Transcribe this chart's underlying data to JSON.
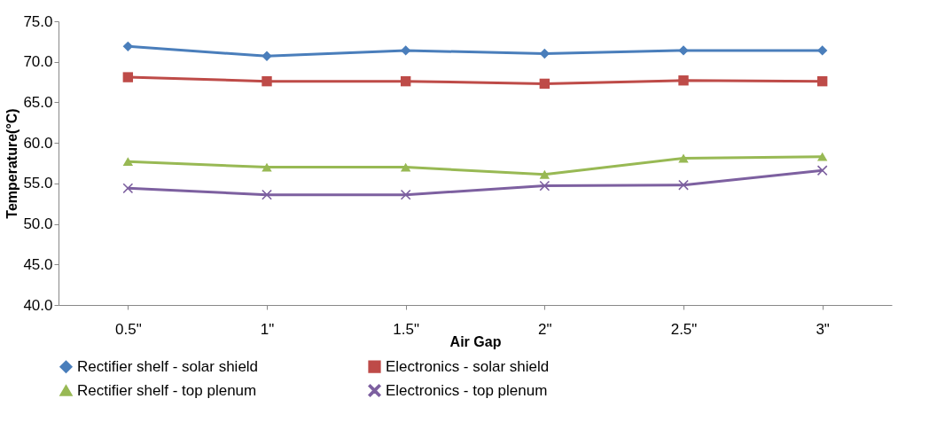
{
  "chart_data": {
    "type": "line",
    "xlabel": "Air Gap",
    "ylabel": "Temperature(°C)",
    "categories": [
      "0.5\"",
      "1\"",
      "1.5\"",
      "2\"",
      "2.5\"",
      "3\""
    ],
    "series": [
      {
        "name": "Rectifier shelf - solar shield",
        "color": "#4a7ebb",
        "marker": "diamond",
        "values": [
          71.9,
          70.7,
          71.4,
          71.0,
          71.4,
          71.4
        ]
      },
      {
        "name": "Electronics - solar shield",
        "color": "#be4b48",
        "marker": "square",
        "values": [
          68.1,
          67.6,
          67.6,
          67.3,
          67.7,
          67.6
        ]
      },
      {
        "name": "Rectifier shelf - top plenum",
        "color": "#98b954",
        "marker": "triangle",
        "values": [
          57.7,
          57.0,
          57.0,
          56.1,
          58.1,
          58.3
        ]
      },
      {
        "name": "Electronics - top plenum",
        "color": "#7d60a0",
        "marker": "cross",
        "values": [
          54.4,
          53.6,
          53.6,
          54.7,
          54.8,
          56.6
        ]
      }
    ],
    "ylim": [
      40,
      75
    ],
    "yticks": [
      {
        "value": 40,
        "label": "40.0"
      },
      {
        "value": 45,
        "label": "45.0"
      },
      {
        "value": 50,
        "label": "50.0"
      },
      {
        "value": 55,
        "label": "55.0"
      },
      {
        "value": 60,
        "label": "60.0"
      },
      {
        "value": 65,
        "label": "65.0"
      },
      {
        "value": 70,
        "label": "70.0"
      },
      {
        "value": 75,
        "label": "75.0"
      }
    ],
    "grid": false,
    "legend": "bottom",
    "line_style": "solid"
  }
}
